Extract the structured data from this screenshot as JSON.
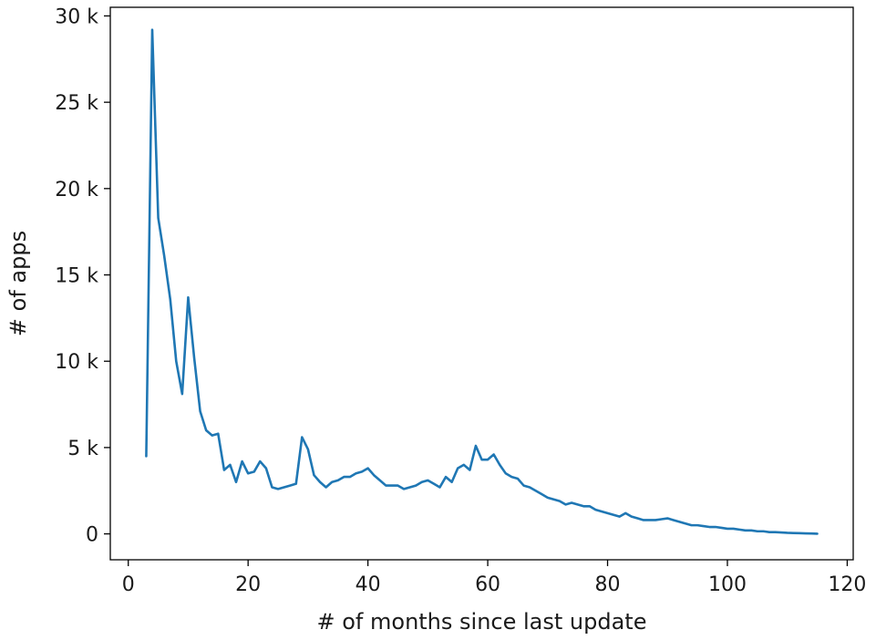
{
  "chart_data": {
    "type": "line",
    "title": "",
    "xlabel": "# of months since last update",
    "ylabel": "# of apps",
    "xlim": [
      -3,
      121
    ],
    "ylim": [
      -1500,
      30500
    ],
    "x_ticks": [
      0,
      20,
      40,
      60,
      80,
      100,
      120
    ],
    "x_tick_labels": [
      "0",
      "20",
      "40",
      "60",
      "80",
      "100",
      "120"
    ],
    "y_ticks": [
      0,
      5000,
      10000,
      15000,
      20000,
      25000,
      30000
    ],
    "y_tick_labels": [
      "0",
      "5 k",
      "10 k",
      "15 k",
      "20 k",
      "25 k",
      "30 k"
    ],
    "grid": false,
    "line_color": "#1f77b4",
    "series": [
      {
        "x": [
          3,
          4,
          5,
          6,
          7,
          8,
          9,
          10,
          11,
          12,
          13,
          14,
          15,
          16,
          17,
          18,
          19,
          20,
          21,
          22,
          23,
          24,
          25,
          26,
          27,
          28,
          29,
          30,
          31,
          32,
          33,
          34,
          35,
          36,
          37,
          38,
          39,
          40,
          41,
          42,
          43,
          44,
          45,
          46,
          47,
          48,
          49,
          50,
          51,
          52,
          53,
          54,
          55,
          56,
          57,
          58,
          59,
          60,
          61,
          62,
          63,
          64,
          65,
          66,
          67,
          68,
          69,
          70,
          71,
          72,
          73,
          74,
          75,
          76,
          77,
          78,
          79,
          80,
          81,
          82,
          83,
          84,
          85,
          86,
          87,
          88,
          89,
          90,
          91,
          92,
          93,
          94,
          95,
          96,
          97,
          98,
          99,
          100,
          101,
          102,
          103,
          104,
          105,
          106,
          107,
          108,
          109,
          110,
          111,
          112,
          113,
          114,
          115
        ],
        "y": [
          4500,
          29200,
          18300,
          16100,
          13600,
          10000,
          8100,
          13700,
          10200,
          7100,
          6000,
          5700,
          5800,
          3700,
          4000,
          3000,
          4200,
          3500,
          3600,
          4200,
          3800,
          2700,
          2600,
          2700,
          2800,
          2900,
          5600,
          4900,
          3400,
          3000,
          2700,
          3000,
          3100,
          3300,
          3300,
          3500,
          3600,
          3800,
          3400,
          3100,
          2800,
          2800,
          2800,
          2600,
          2700,
          2800,
          3000,
          3100,
          2900,
          2700,
          3300,
          3000,
          3800,
          4000,
          3700,
          5100,
          4300,
          4300,
          4600,
          4000,
          3500,
          3300,
          3200,
          2800,
          2700,
          2500,
          2300,
          2100,
          2000,
          1900,
          1700,
          1800,
          1700,
          1600,
          1600,
          1400,
          1300,
          1200,
          1100,
          1000,
          1200,
          1000,
          900,
          800,
          800,
          800,
          850,
          900,
          800,
          700,
          600,
          500,
          500,
          450,
          400,
          400,
          350,
          300,
          300,
          250,
          200,
          200,
          150,
          150,
          100,
          100,
          80,
          60,
          50,
          40,
          30,
          20,
          10
        ]
      }
    ]
  }
}
